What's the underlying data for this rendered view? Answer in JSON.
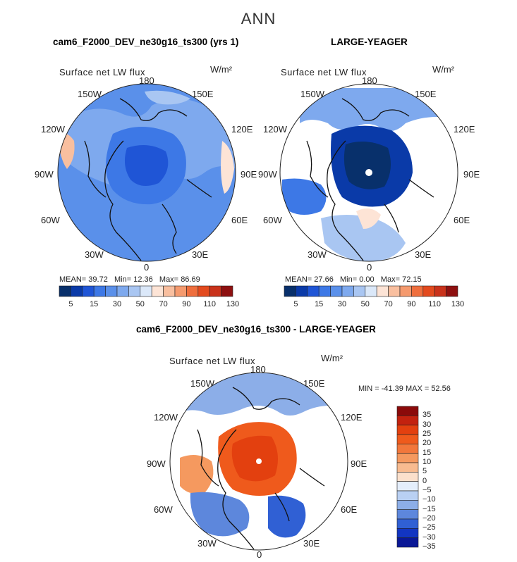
{
  "main_title": "ANN",
  "panels": [
    {
      "case_title": "cam6_F2000_DEV_ne30g16_ts300 (yrs 1)",
      "variable": "Surface net LW flux",
      "units": "W/m²",
      "stats": {
        "mean_label": "MEAN=",
        "mean": "39.72",
        "min_label": "Min=",
        "min": "12.36",
        "max_label": "Max=",
        "max": "86.69"
      }
    },
    {
      "case_title": "LARGE-YEAGER",
      "variable": "Surface net LW flux",
      "units": "W/m²",
      "stats": {
        "mean_label": "MEAN=",
        "mean": "27.66",
        "min_label": "Min=",
        "min": "0.00",
        "max_label": "Max=",
        "max": "72.15"
      }
    }
  ],
  "diff_panel": {
    "case_title": "cam6_F2000_DEV_ne30g16_ts300 - LARGE-YEAGER",
    "variable": "Surface net LW flux",
    "units": "W/m²",
    "minmax": "MIN = -41.39 MAX =  52.56"
  },
  "lon_labels": {
    "top": "180",
    "tl": "150W",
    "tr": "150E",
    "ul": "120W",
    "ur": "120E",
    "l": "90W",
    "r": "90E",
    "ll": "60W",
    "lr": "60E",
    "bl": "30W",
    "br": "30E",
    "bottom": "0"
  },
  "chart_data": [
    {
      "type": "heatmap",
      "title": "cam6_F2000_DEV_ne30g16_ts300 (yrs 1)",
      "projection": "north polar stereographic",
      "variable": "Surface net LW flux",
      "units": "W/m2",
      "mean": 39.72,
      "min": 12.36,
      "max": 86.69,
      "colorbar_levels": [
        5,
        10,
        15,
        20,
        30,
        40,
        50,
        60,
        70,
        80,
        90,
        100,
        110,
        120,
        130
      ],
      "colorbar_tick_labels": [
        "5",
        "15",
        "30",
        "50",
        "70",
        "90",
        "110",
        "130"
      ]
    },
    {
      "type": "heatmap",
      "title": "LARGE-YEAGER",
      "projection": "north polar stereographic",
      "variable": "Surface net LW flux",
      "units": "W/m2",
      "mean": 27.66,
      "min": 0.0,
      "max": 72.15,
      "colorbar_levels": [
        5,
        10,
        15,
        20,
        30,
        40,
        50,
        60,
        70,
        80,
        90,
        100,
        110,
        120,
        130
      ],
      "colorbar_tick_labels": [
        "5",
        "15",
        "30",
        "50",
        "70",
        "90",
        "110",
        "130"
      ]
    },
    {
      "type": "heatmap",
      "title": "cam6_F2000_DEV_ne30g16_ts300 - LARGE-YEAGER",
      "projection": "north polar stereographic",
      "variable": "Surface net LW flux",
      "units": "W/m2",
      "min": -41.39,
      "max": 52.56,
      "colorbar_levels": [
        35,
        30,
        25,
        20,
        15,
        10,
        5,
        0,
        -5,
        -10,
        -15,
        -20,
        -25,
        -30,
        -35
      ],
      "colorbar_tick_labels": [
        "35",
        "30",
        "25",
        "20",
        "15",
        "10",
        "5",
        "0",
        "−5",
        "−10",
        "−15",
        "−20",
        "−25",
        "−30",
        "−35"
      ]
    }
  ],
  "colors": {
    "seq": [
      "#08306b",
      "#0a3aa8",
      "#1f55d6",
      "#3d78e6",
      "#5a90ea",
      "#7ea9ee",
      "#a9c6f2",
      "#dbe8f9",
      "#fde4d6",
      "#f9bf9f",
      "#f59a6e",
      "#ef6e3d",
      "#e34a1e",
      "#c9321b",
      "#8e1010"
    ],
    "div": [
      "#8b0a0a",
      "#c3220f",
      "#e3400f",
      "#ef5a1c",
      "#f2773b",
      "#f5995f",
      "#f8bb90",
      "#fbe0cc",
      "#e4eefb",
      "#b9d0f3",
      "#8caee8",
      "#5d87dc",
      "#3060d4",
      "#1235c2",
      "#0a1896"
    ],
    "land_line": "#111111"
  }
}
